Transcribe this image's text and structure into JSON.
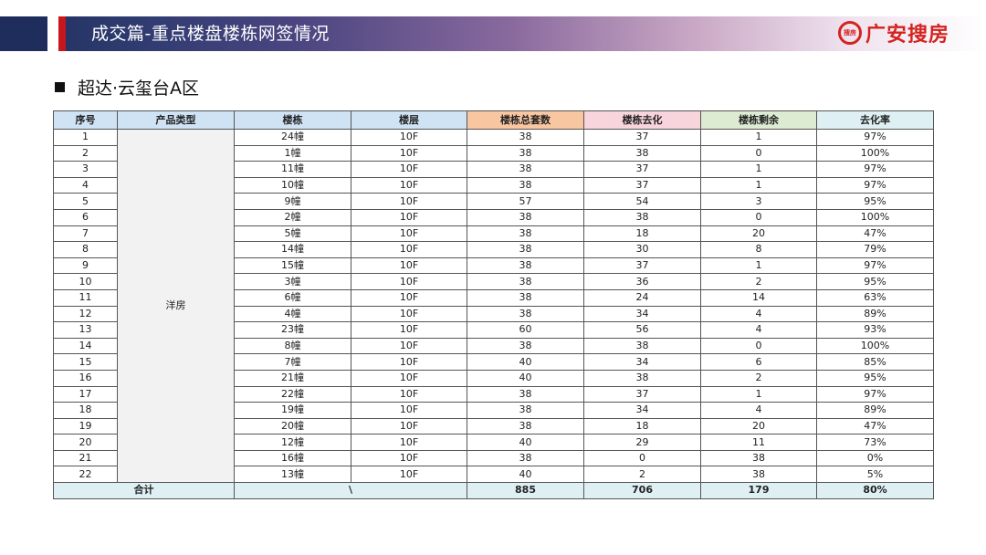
{
  "header": {
    "title": "成交篇-重点楼盘楼栋网签情况",
    "logo_text": "广安搜房",
    "logo_mark": "搜房"
  },
  "section": {
    "title": "超达·云玺台A区"
  },
  "table": {
    "columns": [
      "序号",
      "产品类型",
      "楼栋",
      "楼层",
      "楼栋总套数",
      "楼栋去化",
      "楼栋剩余",
      "去化率"
    ],
    "product_type": "洋房",
    "rows": [
      [
        "1",
        "24幢",
        "10F",
        "38",
        "37",
        "1",
        "97%"
      ],
      [
        "2",
        "1幢",
        "10F",
        "38",
        "38",
        "0",
        "100%"
      ],
      [
        "3",
        "11幢",
        "10F",
        "38",
        "37",
        "1",
        "97%"
      ],
      [
        "4",
        "10幢",
        "10F",
        "38",
        "37",
        "1",
        "97%"
      ],
      [
        "5",
        "9幢",
        "10F",
        "57",
        "54",
        "3",
        "95%"
      ],
      [
        "6",
        "2幢",
        "10F",
        "38",
        "38",
        "0",
        "100%"
      ],
      [
        "7",
        "5幢",
        "10F",
        "38",
        "18",
        "20",
        "47%"
      ],
      [
        "8",
        "14幢",
        "10F",
        "38",
        "30",
        "8",
        "79%"
      ],
      [
        "9",
        "15幢",
        "10F",
        "38",
        "37",
        "1",
        "97%"
      ],
      [
        "10",
        "3幢",
        "10F",
        "38",
        "36",
        "2",
        "95%"
      ],
      [
        "11",
        "6幢",
        "10F",
        "38",
        "24",
        "14",
        "63%"
      ],
      [
        "12",
        "4幢",
        "10F",
        "38",
        "34",
        "4",
        "89%"
      ],
      [
        "13",
        "23幢",
        "10F",
        "60",
        "56",
        "4",
        "93%"
      ],
      [
        "14",
        "8幢",
        "10F",
        "38",
        "38",
        "0",
        "100%"
      ],
      [
        "15",
        "7幢",
        "10F",
        "40",
        "34",
        "6",
        "85%"
      ],
      [
        "16",
        "21幢",
        "10F",
        "40",
        "38",
        "2",
        "95%"
      ],
      [
        "17",
        "22幢",
        "10F",
        "38",
        "37",
        "1",
        "97%"
      ],
      [
        "18",
        "19幢",
        "10F",
        "38",
        "34",
        "4",
        "89%"
      ],
      [
        "19",
        "20幢",
        "10F",
        "38",
        "18",
        "20",
        "47%"
      ],
      [
        "20",
        "12幢",
        "10F",
        "40",
        "29",
        "11",
        "73%"
      ],
      [
        "21",
        "16幢",
        "10F",
        "38",
        "0",
        "38",
        "0%"
      ],
      [
        "22",
        "13幢",
        "10F",
        "40",
        "2",
        "38",
        "5%"
      ]
    ],
    "total": {
      "label": "合计",
      "building": "\\",
      "total_units": "885",
      "sold": "706",
      "remaining": "179",
      "rate": "80%"
    }
  },
  "colors": {
    "brand_red": "#d4231f",
    "header_navy": "#1f2d5c"
  }
}
